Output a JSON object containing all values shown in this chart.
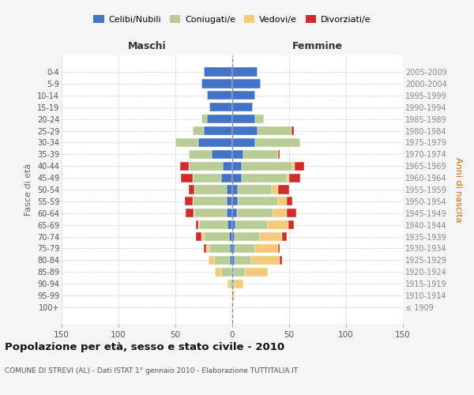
{
  "age_groups": [
    "100+",
    "95-99",
    "90-94",
    "85-89",
    "80-84",
    "75-79",
    "70-74",
    "65-69",
    "60-64",
    "55-59",
    "50-54",
    "45-49",
    "40-44",
    "35-39",
    "30-34",
    "25-29",
    "20-24",
    "15-19",
    "10-14",
    "5-9",
    "0-4"
  ],
  "birth_years": [
    "≤ 1909",
    "1910-1914",
    "1915-1919",
    "1920-1924",
    "1925-1929",
    "1930-1934",
    "1935-1939",
    "1940-1944",
    "1945-1949",
    "1950-1954",
    "1955-1959",
    "1960-1964",
    "1965-1969",
    "1970-1974",
    "1975-1979",
    "1980-1984",
    "1985-1989",
    "1990-1994",
    "1995-1999",
    "2000-2004",
    "2005-2009"
  ],
  "males_celibe": [
    0,
    0,
    0,
    1,
    2,
    2,
    3,
    4,
    5,
    5,
    5,
    10,
    8,
    18,
    30,
    25,
    22,
    20,
    22,
    27,
    25
  ],
  "males_coniugato": [
    0,
    0,
    2,
    9,
    14,
    18,
    22,
    25,
    28,
    30,
    28,
    25,
    30,
    20,
    20,
    10,
    5,
    0,
    0,
    0,
    0
  ],
  "males_vedovo": [
    0,
    1,
    2,
    5,
    5,
    3,
    2,
    1,
    1,
    0,
    0,
    0,
    0,
    0,
    0,
    0,
    0,
    0,
    0,
    0,
    0
  ],
  "males_divorziato": [
    0,
    0,
    0,
    0,
    0,
    2,
    5,
    2,
    7,
    7,
    5,
    10,
    8,
    0,
    0,
    0,
    0,
    0,
    0,
    0,
    0
  ],
  "females_nubile": [
    0,
    0,
    0,
    1,
    2,
    2,
    2,
    3,
    4,
    5,
    5,
    8,
    8,
    10,
    20,
    22,
    20,
    18,
    20,
    25,
    22
  ],
  "females_coniugata": [
    0,
    0,
    2,
    10,
    15,
    18,
    22,
    28,
    32,
    35,
    30,
    40,
    45,
    30,
    40,
    30,
    8,
    0,
    0,
    0,
    0
  ],
  "females_vedova": [
    1,
    2,
    8,
    20,
    25,
    20,
    20,
    18,
    12,
    8,
    5,
    2,
    2,
    0,
    0,
    0,
    0,
    0,
    0,
    0,
    0
  ],
  "females_divorziata": [
    0,
    0,
    0,
    0,
    2,
    2,
    4,
    5,
    8,
    5,
    10,
    10,
    8,
    2,
    0,
    2,
    0,
    0,
    0,
    0,
    0
  ],
  "colors": {
    "celibe": "#4472c4",
    "coniugato": "#b8cc96",
    "vedovo": "#f5c97a",
    "divorziato": "#d12b2b"
  },
  "xlim": 150,
  "title": "Popolazione per età, sesso e stato civile - 2010",
  "subtitle": "COMUNE DI STREVI (AL) - Dati ISTAT 1° gennaio 2010 - Elaborazione TUTTITALIA.IT",
  "ylabel_left": "Fasce di età",
  "ylabel_right": "Anni di nascita",
  "xlabel_maschi": "Maschi",
  "xlabel_femmine": "Femmine",
  "legend_labels": [
    "Celibi/Nubili",
    "Coniugati/e",
    "Vedovi/e",
    "Divorziati/e"
  ],
  "bg_color": "#f5f5f5",
  "plot_bg": "#ffffff"
}
